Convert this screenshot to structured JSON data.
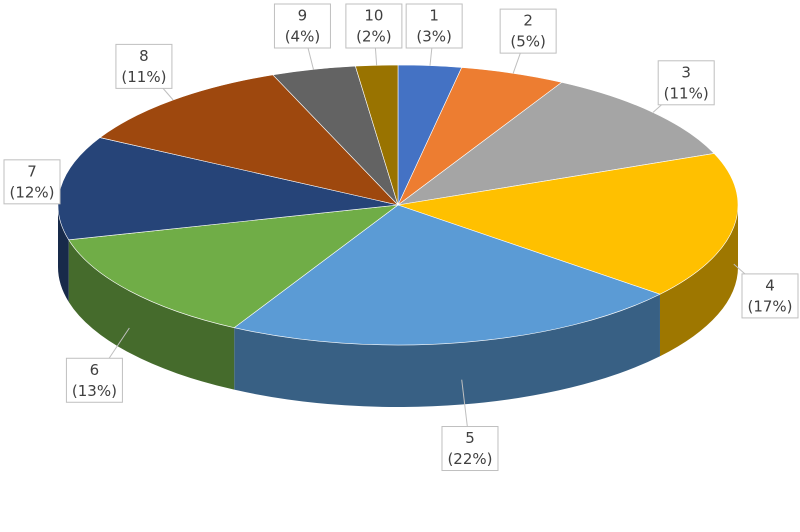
{
  "chart_data": {
    "type": "pie3d",
    "categories": [
      "1",
      "2",
      "3",
      "4",
      "5",
      "6",
      "7",
      "8",
      "9",
      "10"
    ],
    "values": [
      3,
      5,
      11,
      17,
      22,
      13,
      12,
      11,
      4,
      2
    ],
    "value_labels": [
      "(3%)",
      "(5%)",
      "(11%)",
      "(17%)",
      "(22%)",
      "(13%)",
      "(12%)",
      "(11%)",
      "(4%)",
      "(2%)"
    ],
    "colors": [
      "#4472c4",
      "#ed7d31",
      "#a5a5a5",
      "#ffc000",
      "#5b9bd5",
      "#70ad47",
      "#264478",
      "#9e480e",
      "#636363",
      "#997300"
    ]
  }
}
